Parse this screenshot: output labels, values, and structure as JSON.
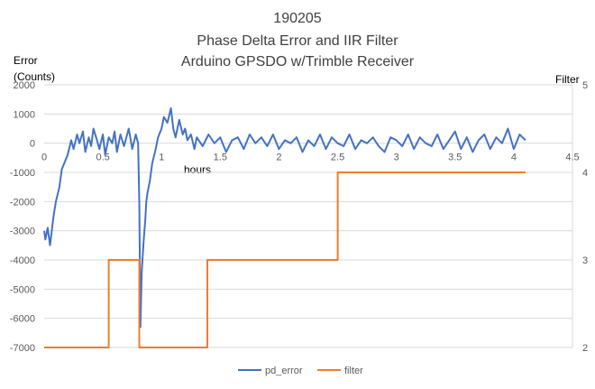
{
  "chart_data": {
    "type": "line",
    "title_lines": [
      "190205",
      "Phase Delta Error and IIR Filter",
      "Arduino GPSDO w/Trimble Receiver"
    ],
    "ylabel_left_lines": [
      "Error",
      "(Counts)"
    ],
    "ylabel_right": "Filter",
    "xlabel": "hours",
    "xlim": [
      0,
      4.5
    ],
    "x_ticks": [
      0,
      0.5,
      1,
      1.5,
      2,
      2.5,
      3,
      3.5,
      4,
      4.5
    ],
    "ylim_left": [
      -7000,
      2000
    ],
    "y_ticks_left": [
      2000,
      1000,
      0,
      -1000,
      -2000,
      -3000,
      -4000,
      -5000,
      -6000,
      -7000
    ],
    "ylim_right": [
      2,
      5
    ],
    "y_ticks_right": [
      5,
      4,
      3,
      2
    ],
    "grid": "horizontal",
    "legend_position": "bottom",
    "colors": {
      "pd_error": "#4472C4",
      "filter": "#ED7D31"
    },
    "series": [
      {
        "name": "pd_error",
        "axis": "left",
        "x": [
          0,
          0.01,
          0.03,
          0.05,
          0.08,
          0.1,
          0.13,
          0.15,
          0.18,
          0.2,
          0.23,
          0.25,
          0.28,
          0.3,
          0.33,
          0.35,
          0.38,
          0.4,
          0.42,
          0.45,
          0.47,
          0.5,
          0.52,
          0.55,
          0.58,
          0.6,
          0.62,
          0.65,
          0.68,
          0.7,
          0.72,
          0.75,
          0.78,
          0.8,
          0.81,
          0.82,
          0.83,
          0.84,
          0.85,
          0.86,
          0.87,
          0.88,
          0.9,
          0.92,
          0.95,
          0.97,
          1.0,
          1.02,
          1.05,
          1.08,
          1.1,
          1.12,
          1.15,
          1.18,
          1.2,
          1.22,
          1.25,
          1.28,
          1.3,
          1.35,
          1.4,
          1.45,
          1.5,
          1.55,
          1.6,
          1.65,
          1.7,
          1.75,
          1.8,
          1.85,
          1.9,
          1.95,
          2.0,
          2.05,
          2.1,
          2.15,
          2.2,
          2.25,
          2.3,
          2.35,
          2.4,
          2.45,
          2.5,
          2.55,
          2.6,
          2.65,
          2.7,
          2.75,
          2.8,
          2.85,
          2.9,
          2.95,
          3.0,
          3.05,
          3.1,
          3.15,
          3.2,
          3.25,
          3.3,
          3.35,
          3.4,
          3.45,
          3.5,
          3.55,
          3.6,
          3.65,
          3.7,
          3.75,
          3.8,
          3.85,
          3.9,
          3.95,
          4.0,
          4.05,
          4.1
        ],
        "y": [
          -3000,
          -3300,
          -2900,
          -3500,
          -2500,
          -2000,
          -1500,
          -900,
          -600,
          -400,
          100,
          -200,
          300,
          0,
          400,
          -300,
          200,
          -100,
          500,
          100,
          -200,
          300,
          -400,
          200,
          0,
          400,
          -300,
          300,
          -100,
          200,
          500,
          -200,
          300,
          0,
          -2000,
          -6300,
          -4500,
          -3800,
          -3200,
          -2700,
          -2000,
          -1700,
          -1300,
          -700,
          -200,
          200,
          500,
          900,
          700,
          1200,
          500,
          200,
          800,
          300,
          500,
          100,
          300,
          -200,
          200,
          -100,
          300,
          0,
          200,
          -300,
          100,
          200,
          -200,
          300,
          0,
          200,
          -100,
          300,
          -200,
          100,
          0,
          200,
          -300,
          100,
          -100,
          300,
          -200,
          200,
          0,
          -100,
          300,
          -200,
          100,
          0,
          200,
          -100,
          -300,
          200,
          100,
          -100,
          300,
          -200,
          200,
          0,
          -100,
          300,
          -200,
          100,
          400,
          -200,
          200,
          -300,
          100,
          300,
          -200,
          200,
          0,
          500,
          -200,
          300,
          100
        ]
      },
      {
        "name": "filter",
        "axis": "right",
        "x": [
          0,
          0.55,
          0.55,
          0.81,
          0.81,
          1.39,
          1.39,
          2.5,
          2.5,
          4.1
        ],
        "y": [
          2,
          2,
          3,
          3,
          2,
          2,
          3,
          3,
          4,
          4
        ]
      }
    ]
  }
}
